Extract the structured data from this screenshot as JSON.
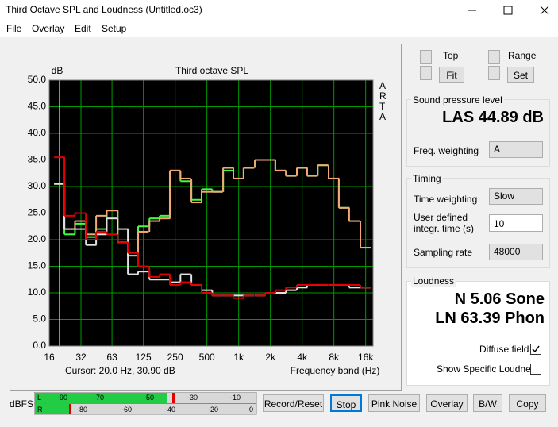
{
  "window": {
    "title": "Third Octave SPL and Loudness (Untitled.oc3)"
  },
  "menu": [
    "File",
    "Overlay",
    "Edit",
    "Setup"
  ],
  "chart_data": {
    "type": "step",
    "title": "Third octave SPL",
    "y_label": "dB",
    "x_label": "Frequency band (Hz)",
    "side_label": "ARTA",
    "cursor": "Cursor:  20.0 Hz, 30.90 dB",
    "x_scale": "log",
    "grid": true,
    "x": [
      20,
      25,
      31.5,
      40,
      50,
      63,
      80,
      100,
      125,
      160,
      200,
      250,
      315,
      400,
      500,
      630,
      800,
      1000,
      1250,
      1600,
      2000,
      2500,
      3150,
      4000,
      5000,
      6300,
      8000,
      10000,
      12500,
      16000
    ],
    "xlim": [
      16,
      18800
    ],
    "xticks": [
      16,
      32,
      63,
      125,
      250,
      500,
      {
        "value": 1000,
        "label": "1k"
      },
      {
        "value": 2000,
        "label": "2k"
      },
      {
        "value": 4000,
        "label": "4k"
      },
      {
        "value": 8000,
        "label": "8k"
      },
      {
        "value": 16000,
        "label": "16k"
      }
    ],
    "ylim": [
      0,
      50
    ],
    "yticks": [
      {
        "value": 0,
        "label": "0.0"
      },
      {
        "value": 5,
        "label": "5.0"
      },
      {
        "value": 10,
        "label": "10.0"
      },
      {
        "value": 15,
        "label": "15.0"
      },
      {
        "value": 20,
        "label": "20.0"
      },
      {
        "value": 25,
        "label": "25.0"
      },
      {
        "value": 30,
        "label": "30.0"
      },
      {
        "value": 35,
        "label": "35.0"
      },
      {
        "value": 40,
        "label": "40.0"
      },
      {
        "value": 45,
        "label": "45.0"
      },
      {
        "value": 50,
        "label": "50.0"
      }
    ],
    "series": [
      {
        "color": "#40ff40",
        "values": [
          30.5,
          21,
          23,
          20.5,
          22,
          25.5,
          19.5,
          17,
          22.5,
          24,
          24.5,
          33,
          31,
          27.5,
          29.5,
          29,
          33,
          31.5,
          33.5,
          35,
          35,
          33,
          32,
          33.5,
          32,
          34,
          31.5,
          26,
          23.5,
          18.5
        ]
      },
      {
        "color": "#f4a878",
        "values": [
          30.5,
          22,
          23.5,
          21,
          24.5,
          25.5,
          19.5,
          17,
          21.5,
          23.5,
          24,
          33,
          31.5,
          27,
          29,
          29,
          33.5,
          31.5,
          33.5,
          35,
          35,
          33,
          32,
          33.5,
          32,
          34,
          31.5,
          26,
          23.5,
          18.5
        ]
      },
      {
        "color": "#e0e0e0",
        "values": [
          30.5,
          22,
          22,
          19,
          21,
          24,
          22,
          13.5,
          14,
          12.5,
          12.5,
          12,
          13.5,
          11.5,
          10.5,
          9.5,
          9.5,
          9.5,
          9.5,
          9.5,
          10,
          10,
          10.5,
          11,
          11.5,
          11.5,
          11.5,
          11.5,
          11,
          11
        ]
      },
      {
        "color": "#e00000",
        "values": [
          35.5,
          24.5,
          25,
          20,
          21.5,
          21,
          19.5,
          17.5,
          15,
          13,
          13.5,
          11.5,
          12,
          11.5,
          10,
          9.5,
          9.5,
          9,
          9.5,
          9.5,
          10,
          10.5,
          11,
          11.5,
          11.5,
          11.5,
          11.5,
          11.5,
          11.5,
          11
        ]
      }
    ]
  },
  "scale_controls": {
    "top": "Top",
    "fit": "Fit",
    "range": "Range",
    "set": "Set"
  },
  "spl": {
    "title": "Sound pressure level",
    "reading": "LAS 44.89 dB",
    "weighting_label": "Freq. weighting",
    "weighting": "A"
  },
  "timing": {
    "title": "Timing",
    "time_weighting_label": "Time weighting",
    "time_weighting": "Slow",
    "integration_label_1": "User defined",
    "integration_label_2": "integr. time (s)",
    "integration_time": "10",
    "sampling_label": "Sampling rate",
    "sampling_rate": "48000"
  },
  "loudness": {
    "title": "Loudness",
    "sone": "N 5.06 Sone",
    "phon": "LN 63.39 Phon",
    "diffuse": "Diffuse field",
    "specific": "Show Specific Loudness"
  },
  "meter": {
    "label": "dBFS",
    "channels": [
      "L",
      "R"
    ],
    "top_scale": [
      "-90",
      "-70",
      "-50",
      "-30",
      "-10"
    ],
    "bottom_scale": [
      "-80",
      "-60",
      "-40",
      "-20",
      "0"
    ]
  },
  "buttons": [
    "Record/Reset",
    "Stop",
    "Pink Noise",
    "Overlay",
    "B/W",
    "Copy"
  ]
}
